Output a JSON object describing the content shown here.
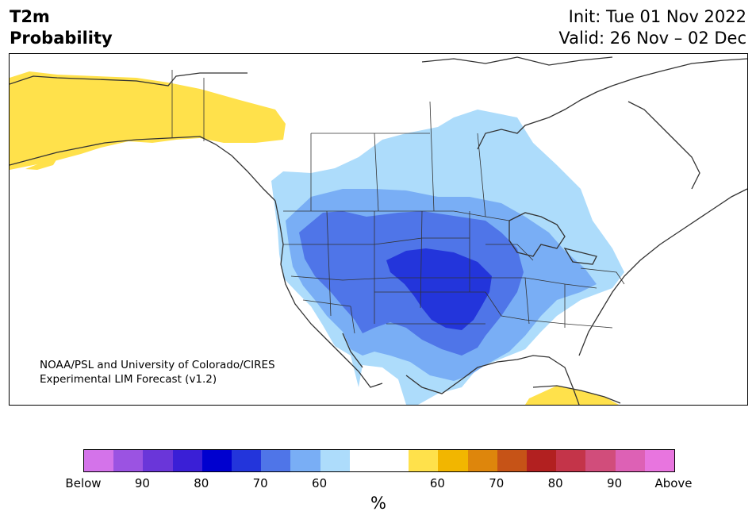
{
  "header": {
    "title_line1": "T2m",
    "title_line2": "Probability",
    "init_label": "Init: Tue 01 Nov 2022",
    "valid_label": "Valid: 26 Nov – 02 Dec"
  },
  "map": {
    "credit_line1": "NOAA/PSL and University of Colorado/CIRES",
    "credit_line2": "Experimental LIM Forecast (v1.2)"
  },
  "colorbar": {
    "colors": [
      "#d473ea",
      "#9b53e2",
      "#6a36d9",
      "#3a1fd6",
      "#0000cf",
      "#2335db",
      "#4f75e8",
      "#79aef5",
      "#addcfb",
      "#ffffff",
      "#ffffff",
      "#ffe14b",
      "#f2b600",
      "#de860c",
      "#c65317",
      "#b22020",
      "#c43449",
      "#d14d7b",
      "#dd61b5",
      "#e875df"
    ],
    "tick_labels": [
      "Below",
      "90",
      "80",
      "70",
      "60",
      "60",
      "70",
      "80",
      "90",
      "Above"
    ],
    "unit": "%"
  }
}
